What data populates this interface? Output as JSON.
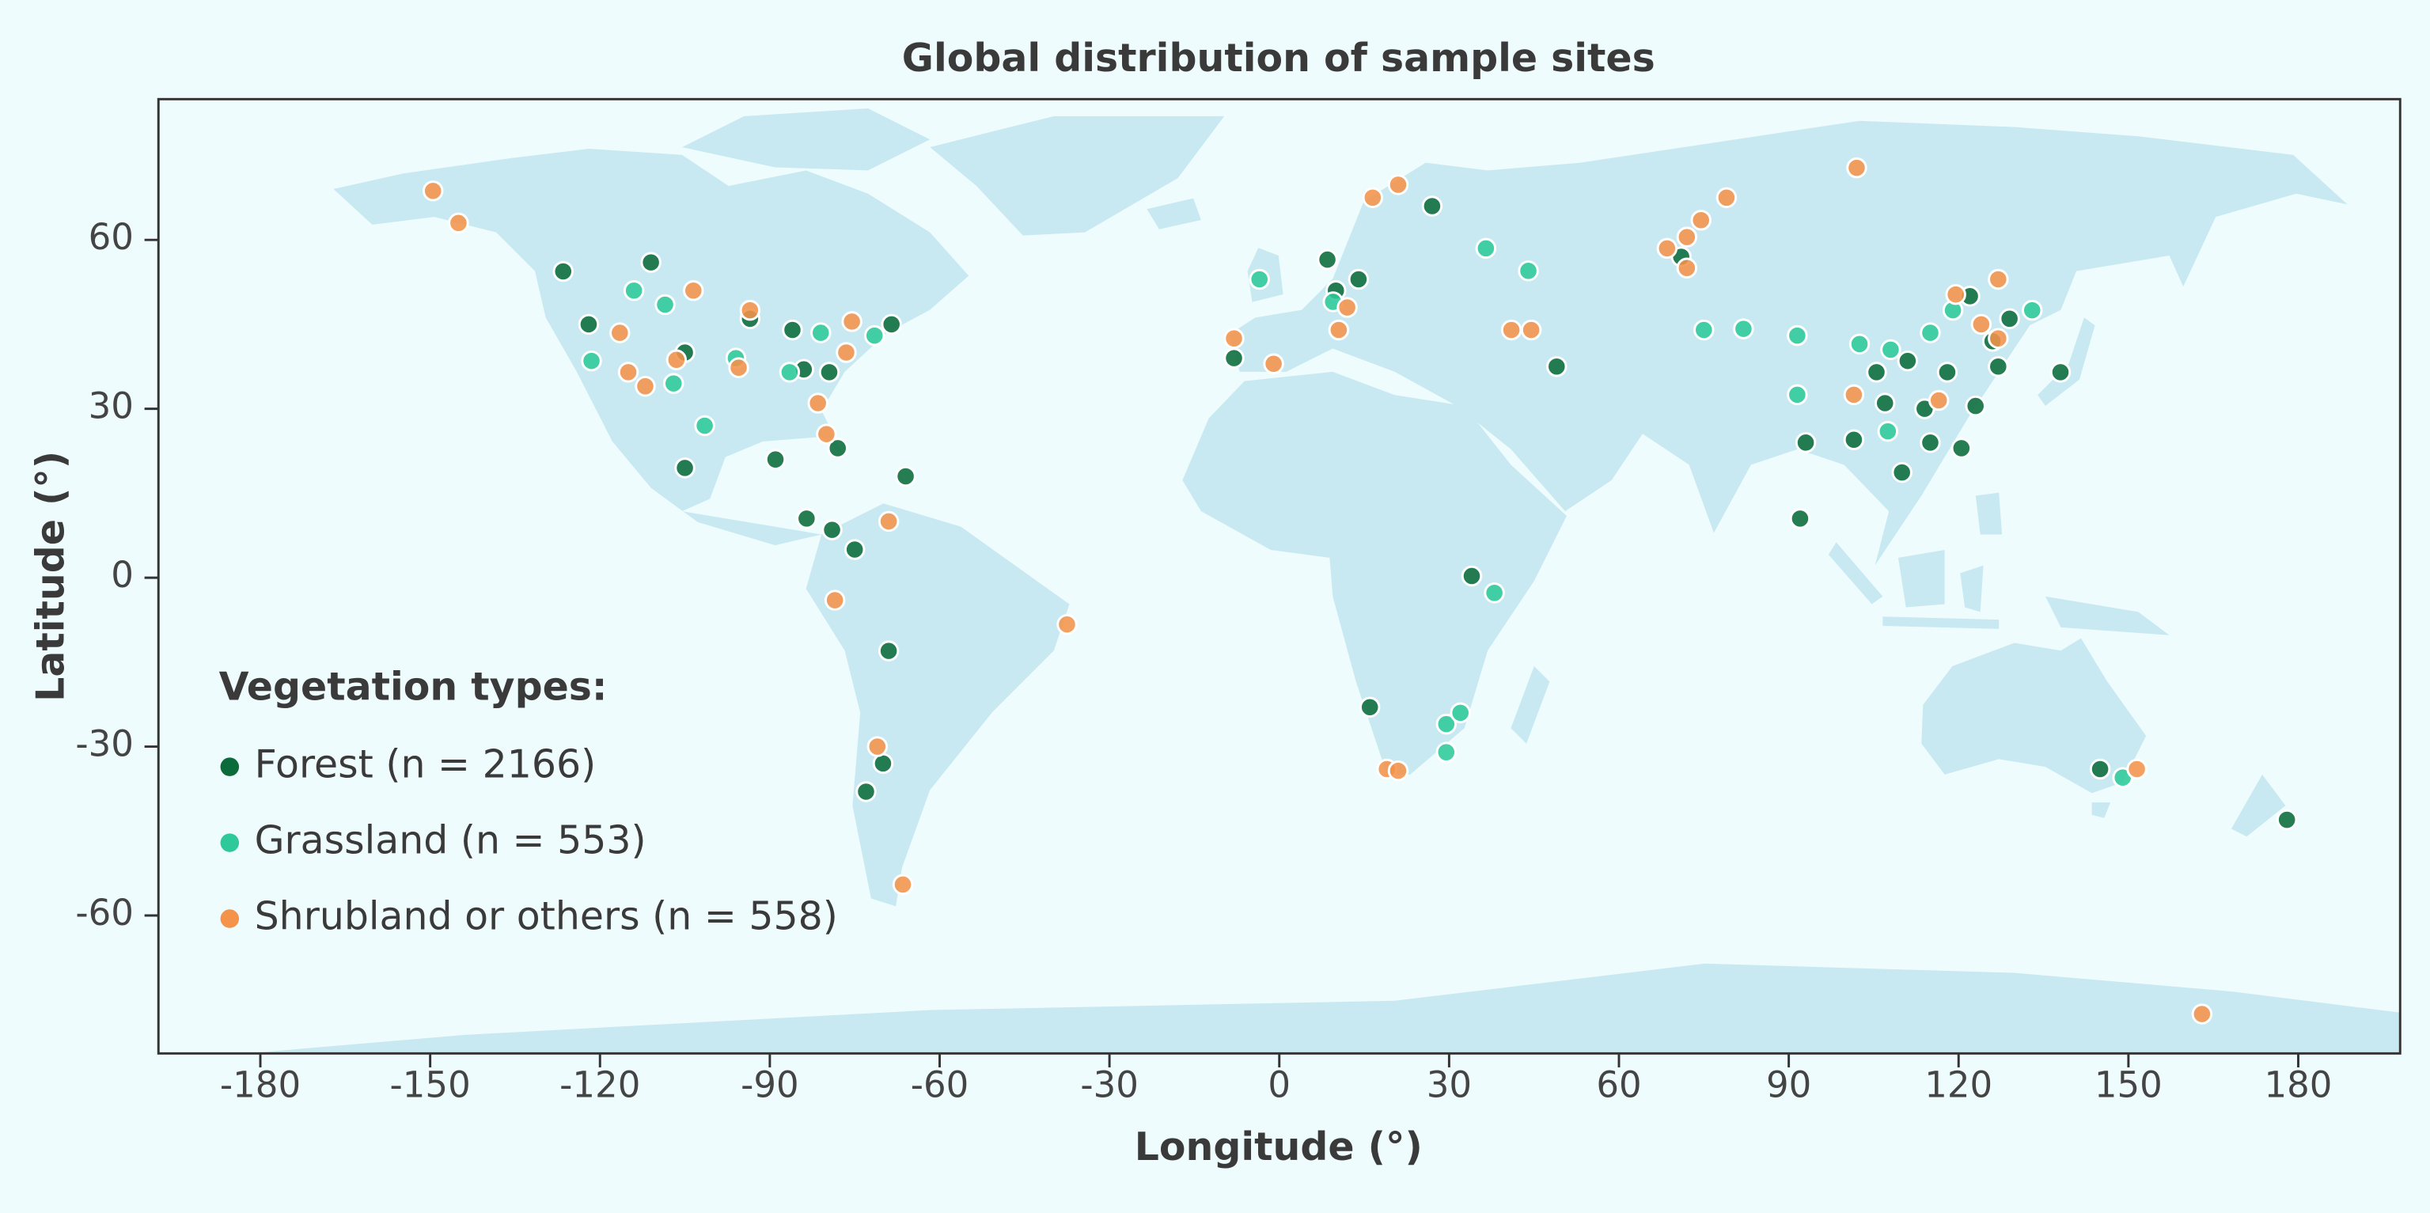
{
  "chart_data": {
    "type": "scatter",
    "title": "Global distribution of sample sites",
    "x_label": "Longitude (°)",
    "y_label": "Latitude (°)",
    "xlim": [
      -198,
      198
    ],
    "ylim": [
      -84.5,
      85
    ],
    "xticks": [
      -180,
      -150,
      -120,
      -90,
      -60,
      -30,
      0,
      30,
      60,
      90,
      120,
      150,
      180
    ],
    "yticks": [
      -60,
      -30,
      0,
      30,
      60
    ],
    "grid": false,
    "legend": "lower left",
    "legend_title": "Vegetation types:",
    "series": [
      {
        "name": "Forest (n = 2166)",
        "color": "#0b6b3a",
        "x": [
          -126.5,
          -122,
          -111,
          -105,
          -105,
          -93.5,
          -86,
          -84,
          -79.5,
          -89,
          -78,
          -68.5,
          -66,
          -83.5,
          -79,
          -75,
          -69,
          -70,
          -73,
          -8,
          8.5,
          10,
          14,
          27,
          49,
          34,
          16,
          71,
          92,
          93,
          101.5,
          105.5,
          111,
          107,
          110,
          114,
          118,
          120.5,
          123,
          126,
          129,
          127,
          122,
          138,
          145,
          178,
          115
        ],
        "y": [
          54.4,
          45,
          56,
          40,
          19.5,
          46,
          44,
          37,
          36.5,
          21,
          23,
          45,
          18,
          10.5,
          8.5,
          5,
          -13,
          -33,
          -38,
          39,
          56.5,
          51,
          53,
          66,
          37.5,
          0.3,
          -23,
          57,
          10.5,
          24,
          24.5,
          36.5,
          38.5,
          31,
          18.7,
          30,
          36.5,
          23,
          30.5,
          42,
          46,
          37.5,
          50,
          36.5,
          -34,
          -43,
          24
        ]
      },
      {
        "name": "Grassland (n = 553)",
        "color": "#2ec99a",
        "x": [
          -114,
          -108.5,
          -121.5,
          -107,
          -101.5,
          -96,
          -81,
          -86.5,
          -71.5,
          -3.5,
          9.5,
          75,
          82,
          91.5,
          91.5,
          102.5,
          108,
          115,
          119,
          133,
          107.5,
          38,
          29.5,
          32,
          29.5,
          149,
          44,
          36.5
        ],
        "y": [
          51,
          48.5,
          38.5,
          34.5,
          27,
          39,
          43.5,
          36.5,
          43,
          53,
          49,
          44,
          44.2,
          43,
          32.5,
          41.5,
          40.5,
          43.5,
          47.5,
          47.5,
          26,
          -2.7,
          -26,
          -24,
          -31,
          -35.5,
          54.5,
          58.5
        ]
      },
      {
        "name": "Shrubland or others (n = 558)",
        "color": "#f4934a",
        "x": [
          -149.5,
          -145,
          -116.5,
          -115,
          -112,
          -103.5,
          -106.5,
          -95.5,
          -93.5,
          -81.5,
          -80,
          -75.5,
          -76.5,
          -69,
          -78.5,
          -71,
          -66.5,
          -37.5,
          -8,
          -1,
          10.5,
          12,
          16.5,
          21,
          19,
          21,
          41,
          44.5,
          68.5,
          72,
          74.5,
          79,
          72,
          102,
          101.5,
          119.5,
          127,
          124,
          127,
          116.5,
          151.5,
          163
        ],
        "y": [
          68.7,
          63,
          43.5,
          36.5,
          34,
          51,
          38.7,
          37.3,
          47.5,
          31,
          25.5,
          45.5,
          40,
          10,
          -4,
          -30,
          -54.5,
          -8.3,
          42.5,
          38,
          44,
          48,
          67.5,
          69.8,
          -34,
          -34.3,
          44,
          44,
          58.5,
          60.5,
          63.5,
          67.5,
          55,
          72.8,
          32.5,
          50.3,
          53,
          45,
          42.5,
          31.5,
          -34,
          -77.5
        ]
      }
    ]
  }
}
